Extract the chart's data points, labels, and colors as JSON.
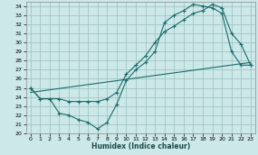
{
  "title": "",
  "xlabel": "Humidex (Indice chaleur)",
  "bg_color": "#cce8e8",
  "grid_color": "#9bbfbf",
  "line_color": "#1a6b6b",
  "xlim": [
    -0.5,
    23.5
  ],
  "ylim": [
    20,
    34.5
  ],
  "yticks": [
    20,
    21,
    22,
    23,
    24,
    25,
    26,
    27,
    28,
    29,
    30,
    31,
    32,
    33,
    34
  ],
  "xticks": [
    0,
    1,
    2,
    3,
    4,
    5,
    6,
    7,
    8,
    9,
    10,
    11,
    12,
    13,
    14,
    15,
    16,
    17,
    18,
    19,
    20,
    21,
    22,
    23
  ],
  "line1_x": [
    0,
    1,
    2,
    3,
    4,
    5,
    6,
    7,
    8,
    9,
    10,
    11,
    12,
    13,
    14,
    15,
    16,
    17,
    18,
    19,
    20,
    21,
    22,
    23
  ],
  "line1_y": [
    25.0,
    23.8,
    23.8,
    22.2,
    22.0,
    21.5,
    21.2,
    20.5,
    21.2,
    23.2,
    25.8,
    27.0,
    27.8,
    29.0,
    32.2,
    33.0,
    33.5,
    34.2,
    34.0,
    33.8,
    33.2,
    29.0,
    27.5,
    27.5
  ],
  "line2_x": [
    0,
    1,
    2,
    3,
    4,
    5,
    6,
    7,
    8,
    9,
    10,
    11,
    12,
    13,
    14,
    15,
    16,
    17,
    18,
    19,
    20,
    21,
    22,
    23
  ],
  "line2_y": [
    25.0,
    23.8,
    23.8,
    23.8,
    23.5,
    23.5,
    23.5,
    23.5,
    23.8,
    24.5,
    26.5,
    27.5,
    28.5,
    30.0,
    31.2,
    31.8,
    32.5,
    33.2,
    33.5,
    34.2,
    33.8,
    31.0,
    29.8,
    27.5
  ],
  "line3_x": [
    0,
    23
  ],
  "line3_y": [
    24.5,
    27.8
  ]
}
